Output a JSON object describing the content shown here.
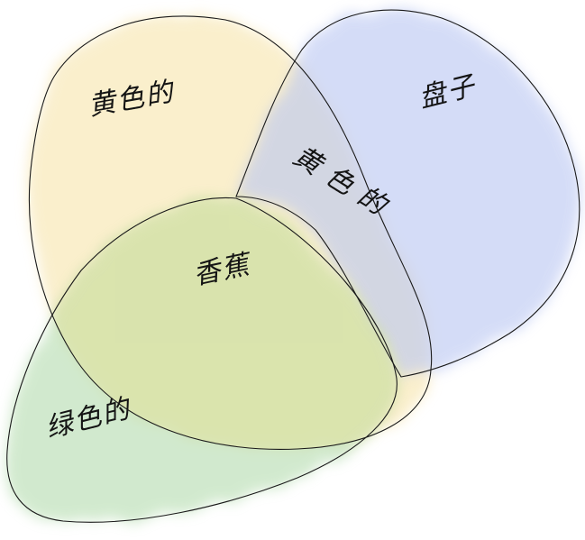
{
  "diagram": {
    "type": "venn",
    "sets": [
      {
        "name": "黄色的",
        "color": "#f6e2a4"
      },
      {
        "name": "盘子",
        "color": "#b9c6f2"
      },
      {
        "name": "绿色的",
        "color": "#b4dcae"
      }
    ],
    "labels": {
      "yellow": "黄色的",
      "blue": "盘子",
      "overlap_yellow_blue": "黄色的",
      "center": "香蕉",
      "green": "绿色的"
    }
  }
}
